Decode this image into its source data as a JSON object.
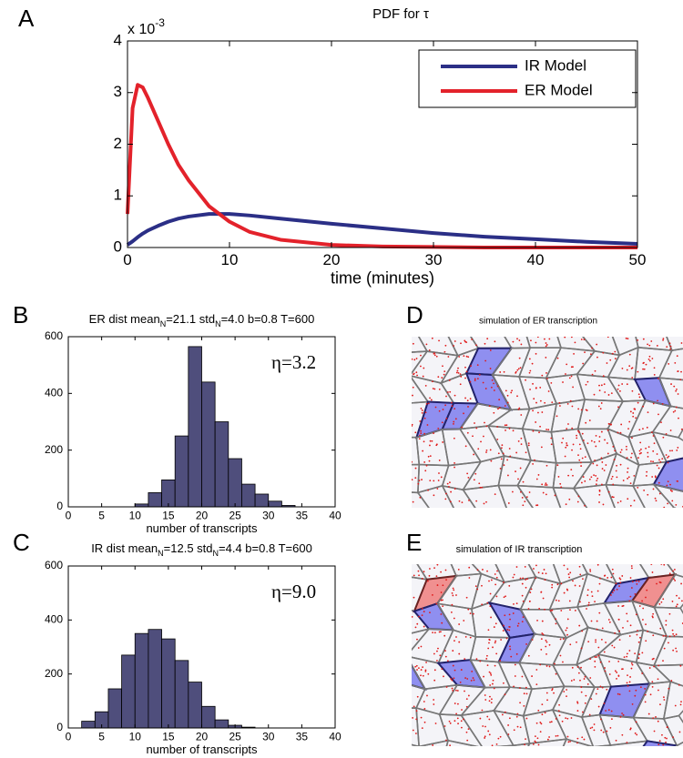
{
  "panels": [
    "A",
    "B",
    "C",
    "D",
    "E"
  ],
  "images": [
    {
      "title": "simulation of ER transcription"
    },
    {
      "title": "simulation of IR transcription"
    }
  ],
  "chart_data": [
    {
      "type": "line",
      "title": "PDF for τ",
      "xlabel": "time (minutes)",
      "y_scale_label": "x 10",
      "y_scale_exponent": "-3",
      "x": [
        0,
        0.5,
        1,
        1.5,
        2,
        3,
        4,
        5,
        6,
        8,
        10,
        12,
        15,
        20,
        25,
        30,
        35,
        40,
        45,
        50
      ],
      "series": [
        {
          "name": "IR Model",
          "color": "#2b2f86",
          "values": [
            0.05,
            0.12,
            0.2,
            0.27,
            0.33,
            0.42,
            0.5,
            0.56,
            0.6,
            0.65,
            0.65,
            0.62,
            0.56,
            0.46,
            0.37,
            0.28,
            0.21,
            0.16,
            0.11,
            0.07
          ]
        },
        {
          "name": "ER Model",
          "color": "#e3222b",
          "values": [
            0.65,
            2.7,
            3.15,
            3.1,
            2.9,
            2.45,
            2.0,
            1.6,
            1.3,
            0.8,
            0.5,
            0.3,
            0.15,
            0.05,
            0.02,
            0.01,
            0,
            0,
            0,
            0
          ]
        }
      ],
      "xlim": [
        0,
        50
      ],
      "xticks": [
        0,
        10,
        20,
        30,
        40,
        50
      ],
      "ylim": [
        0,
        4
      ],
      "yticks": [
        0,
        1,
        2,
        3,
        4
      ],
      "legend": "upper right"
    },
    {
      "type": "histogram",
      "title_parts": [
        "ER dist  mean",
        "N",
        "=21.1  std",
        "N",
        "=4.0  b=0.8  T=600"
      ],
      "annotation": "η=3.2",
      "xlabel": "number of transcripts",
      "color": "#4f4e7c",
      "bins": [
        0,
        2,
        4,
        6,
        8,
        10,
        12,
        14,
        16,
        18,
        20,
        22,
        24,
        26,
        28,
        30,
        32,
        34,
        36,
        38,
        40
      ],
      "counts": [
        0,
        0,
        0,
        0,
        0,
        10,
        50,
        95,
        250,
        565,
        440,
        300,
        170,
        80,
        45,
        20,
        5,
        0,
        0,
        0
      ],
      "xlim": [
        0,
        40
      ],
      "xticks": [
        0,
        5,
        10,
        15,
        20,
        25,
        30,
        35,
        40
      ],
      "ylim": [
        0,
        600
      ],
      "yticks": [
        0,
        200,
        400,
        600
      ]
    },
    {
      "type": "histogram",
      "title_parts": [
        "IR dist  mean",
        "N",
        "=12.5  std",
        "N",
        "=4.4  b=0.8 T=600"
      ],
      "annotation": "η=9.0",
      "xlabel": "number of transcripts",
      "color": "#4f4e7c",
      "bins": [
        0,
        2,
        4,
        6,
        8,
        10,
        12,
        14,
        16,
        18,
        20,
        22,
        24,
        26,
        28,
        30,
        32,
        34,
        36,
        38,
        40
      ],
      "counts": [
        0,
        25,
        60,
        145,
        270,
        350,
        365,
        330,
        250,
        170,
        80,
        30,
        10,
        3,
        0,
        0,
        0,
        0,
        0,
        0
      ],
      "xlim": [
        0,
        40
      ],
      "xticks": [
        0,
        5,
        10,
        15,
        20,
        25,
        30,
        35,
        40
      ],
      "ylim": [
        0,
        600
      ],
      "yticks": [
        0,
        200,
        400,
        600
      ]
    }
  ]
}
